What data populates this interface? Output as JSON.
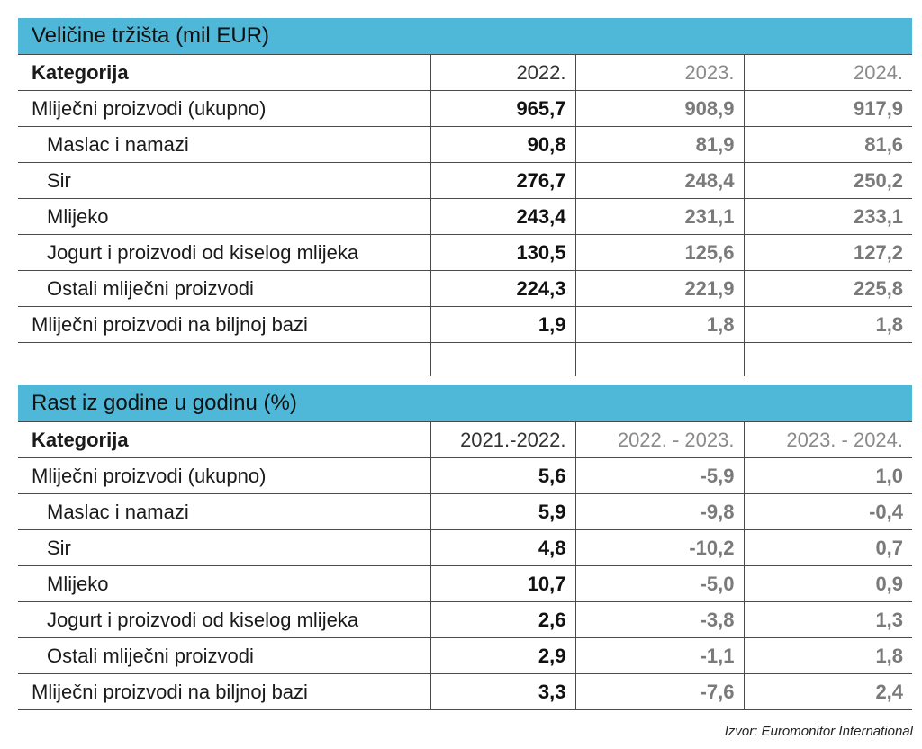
{
  "market_size": {
    "title": "Veličine tržišta (mil EUR)",
    "header": [
      "Kategorija",
      "2022.",
      "2023.",
      "2024."
    ],
    "rows": [
      {
        "label": "Mliječni proizvodi (ukupno)",
        "values": [
          "965,7",
          "908,9",
          "917,9"
        ],
        "indent": false
      },
      {
        "label": "Maslac i namazi",
        "values": [
          "90,8",
          "81,9",
          "81,6"
        ],
        "indent": true
      },
      {
        "label": "Sir",
        "values": [
          "276,7",
          "248,4",
          "250,2"
        ],
        "indent": true
      },
      {
        "label": "Mlijeko",
        "values": [
          "243,4",
          "231,1",
          "233,1"
        ],
        "indent": true
      },
      {
        "label": "Jogurt i proizvodi od kiselog mlijeka",
        "values": [
          "130,5",
          "125,6",
          "127,2"
        ],
        "indent": true
      },
      {
        "label": "Ostali mliječni proizvodi",
        "values": [
          "224,3",
          "221,9",
          "225,8"
        ],
        "indent": true
      },
      {
        "label": "Mliječni proizvodi na biljnoj bazi",
        "values": [
          "1,9",
          "1,8",
          "1,8"
        ],
        "indent": false
      }
    ]
  },
  "growth": {
    "title": "Rast iz godine u godinu (%)",
    "header": [
      "Kategorija",
      "2021.-2022.",
      "2022. - 2023.",
      "2023. - 2024."
    ],
    "rows": [
      {
        "label": "Mliječni proizvodi (ukupno)",
        "values": [
          "5,6",
          "-5,9",
          "1,0"
        ],
        "indent": false
      },
      {
        "label": "Maslac i namazi",
        "values": [
          "5,9",
          "-9,8",
          "-0,4"
        ],
        "indent": true
      },
      {
        "label": "Sir",
        "values": [
          "4,8",
          "-10,2",
          "0,7"
        ],
        "indent": true
      },
      {
        "label": "Mlijeko",
        "values": [
          "10,7",
          "-5,0",
          "0,9"
        ],
        "indent": true
      },
      {
        "label": "Jogurt i proizvodi od kiselog mlijeka",
        "values": [
          "2,6",
          "-3,8",
          "1,3"
        ],
        "indent": true
      },
      {
        "label": "Ostali mliječni proizvodi",
        "values": [
          "2,9",
          "-1,1",
          "1,8"
        ],
        "indent": true
      },
      {
        "label": "Mliječni proizvodi na biljnoj bazi",
        "values": [
          "3,3",
          "-7,6",
          "2,4"
        ],
        "indent": false
      }
    ]
  },
  "source": "Izvor: Euromonitor International",
  "colors": {
    "header_bg": "#4fb8d8",
    "border": "#4a4a4a",
    "muted_value": "#7a7a7a"
  }
}
